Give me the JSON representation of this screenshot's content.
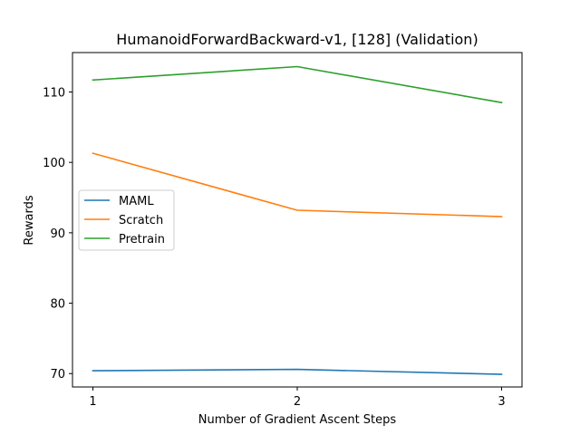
{
  "chart_data": {
    "type": "line",
    "title": "HumanoidForwardBackward-v1, [128] (Validation)",
    "xlabel": "Number of Gradient Ascent Steps",
    "ylabel": "Rewards",
    "x": [
      1,
      2,
      3
    ],
    "xlim": [
      0.9,
      3.1
    ],
    "ylim": [
      68.1,
      115.6
    ],
    "xticks": [
      1,
      2,
      3
    ],
    "yticks": [
      70,
      80,
      90,
      100,
      110
    ],
    "grid": false,
    "legend_position": "center-left",
    "series": [
      {
        "name": "MAML",
        "color": "#1f77b4",
        "values": [
          70.4,
          70.6,
          69.9
        ]
      },
      {
        "name": "Scratch",
        "color": "#ff7f0e",
        "values": [
          101.3,
          93.2,
          92.3
        ]
      },
      {
        "name": "Pretrain",
        "color": "#2ca02c",
        "values": [
          111.7,
          113.6,
          108.5
        ]
      }
    ]
  }
}
